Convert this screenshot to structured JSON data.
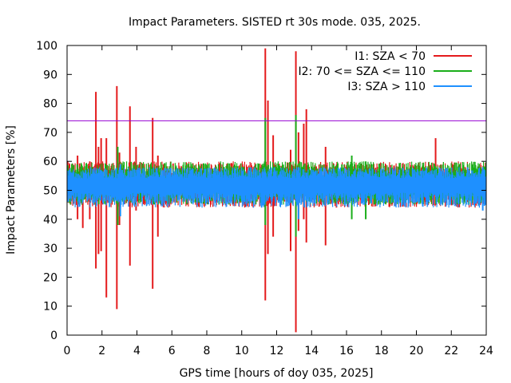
{
  "chart_data": {
    "type": "line",
    "title": "Impact Parameters. SISTED rt 30s mode. 035, 2025.",
    "xlabel": "GPS time [hours of doy 035, 2025]",
    "ylabel": "Impact Parameters [%]",
    "xlim": [
      0,
      24
    ],
    "ylim": [
      0,
      100
    ],
    "xticks": [
      "0",
      "2",
      "4",
      "6",
      "8",
      "10",
      "12",
      "14",
      "16",
      "18",
      "20",
      "22",
      "24"
    ],
    "yticks": [
      "0",
      "10",
      "20",
      "30",
      "40",
      "50",
      "60",
      "70",
      "80",
      "90",
      "100"
    ],
    "grid": false,
    "legend_position": "top-right",
    "threshold_line": {
      "y": 74,
      "color": "#9400d3"
    },
    "series": [
      {
        "name": "I1: SZA < 70",
        "color": "#e41a1c",
        "baseline": 52,
        "typical_range": [
          44,
          60
        ],
        "spikes": [
          {
            "x": 0.05,
            "low": 47,
            "high": 58
          },
          {
            "x": 0.6,
            "low": 40,
            "high": 62
          },
          {
            "x": 0.9,
            "low": 37,
            "high": 58
          },
          {
            "x": 1.3,
            "low": 40,
            "high": 60
          },
          {
            "x": 1.65,
            "low": 23,
            "high": 84
          },
          {
            "x": 1.8,
            "low": 28,
            "high": 65
          },
          {
            "x": 1.95,
            "low": 29,
            "high": 68
          },
          {
            "x": 2.25,
            "low": 13,
            "high": 68
          },
          {
            "x": 2.85,
            "low": 9,
            "high": 86
          },
          {
            "x": 3.0,
            "low": 38,
            "high": 63
          },
          {
            "x": 3.6,
            "low": 24,
            "high": 79
          },
          {
            "x": 3.95,
            "low": 43,
            "high": 65
          },
          {
            "x": 4.9,
            "low": 16,
            "high": 75
          },
          {
            "x": 5.2,
            "low": 34,
            "high": 62
          },
          {
            "x": 11.35,
            "low": 12,
            "high": 99
          },
          {
            "x": 11.5,
            "low": 28,
            "high": 81
          },
          {
            "x": 11.8,
            "low": 34,
            "high": 69
          },
          {
            "x": 12.8,
            "low": 29,
            "high": 64
          },
          {
            "x": 13.1,
            "low": 1,
            "high": 98
          },
          {
            "x": 13.25,
            "low": 36,
            "high": 70
          },
          {
            "x": 13.55,
            "low": 40,
            "high": 73
          },
          {
            "x": 13.7,
            "low": 32,
            "high": 78
          },
          {
            "x": 14.8,
            "low": 31,
            "high": 65
          },
          {
            "x": 21.1,
            "low": 46,
            "high": 68
          }
        ]
      },
      {
        "name": "I2: 70 <= SZA <= 110",
        "color": "#1aae1a",
        "baseline": 52,
        "typical_range": [
          45,
          60
        ],
        "spikes": [
          {
            "x": 2.9,
            "low": 38,
            "high": 65
          },
          {
            "x": 11.35,
            "low": 38,
            "high": 75
          },
          {
            "x": 13.1,
            "low": 34,
            "high": 76
          },
          {
            "x": 16.3,
            "low": 40,
            "high": 62
          },
          {
            "x": 17.1,
            "low": 40,
            "high": 60
          }
        ]
      },
      {
        "name": "I3: SZA > 110",
        "color": "#1e90ff",
        "baseline": 52,
        "typical_range": [
          44,
          58
        ],
        "spikes": [
          {
            "x": 3.05,
            "low": 41,
            "high": 59
          },
          {
            "x": 13.25,
            "low": 40,
            "high": 58
          },
          {
            "x": 23.8,
            "low": 43,
            "high": 58
          }
        ]
      }
    ]
  }
}
